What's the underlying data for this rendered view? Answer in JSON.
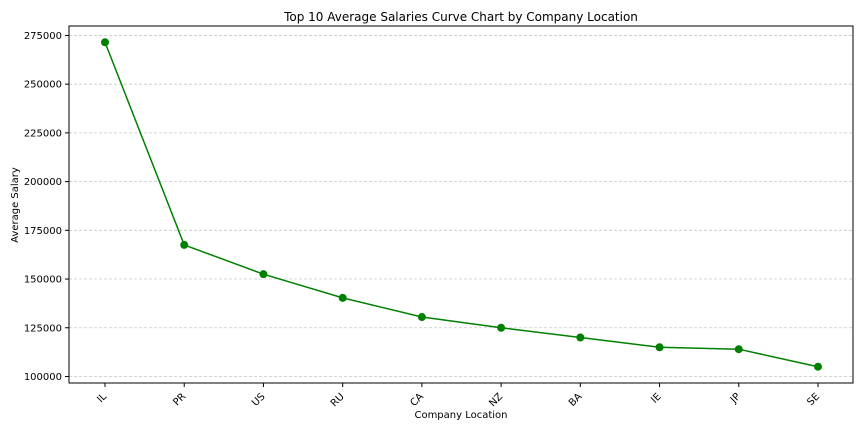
{
  "chart_data": {
    "type": "line",
    "title": "Top 10 Average Salaries Curve Chart by Company Location",
    "xlabel": "Company Location",
    "ylabel": "Average Salary",
    "categories": [
      "IL",
      "PR",
      "US",
      "RU",
      "CA",
      "NZ",
      "BA",
      "IE",
      "JP",
      "SE"
    ],
    "series": [
      {
        "values": [
          271500,
          167500,
          152500,
          140333,
          130500,
          125000,
          120000,
          115000,
          114000,
          105000
        ]
      }
    ],
    "yticks": [
      100000,
      125000,
      150000,
      175000,
      200000,
      225000,
      250000,
      275000
    ],
    "ylim": [
      96650,
      279850
    ],
    "grid": "y",
    "color": "#008000"
  }
}
